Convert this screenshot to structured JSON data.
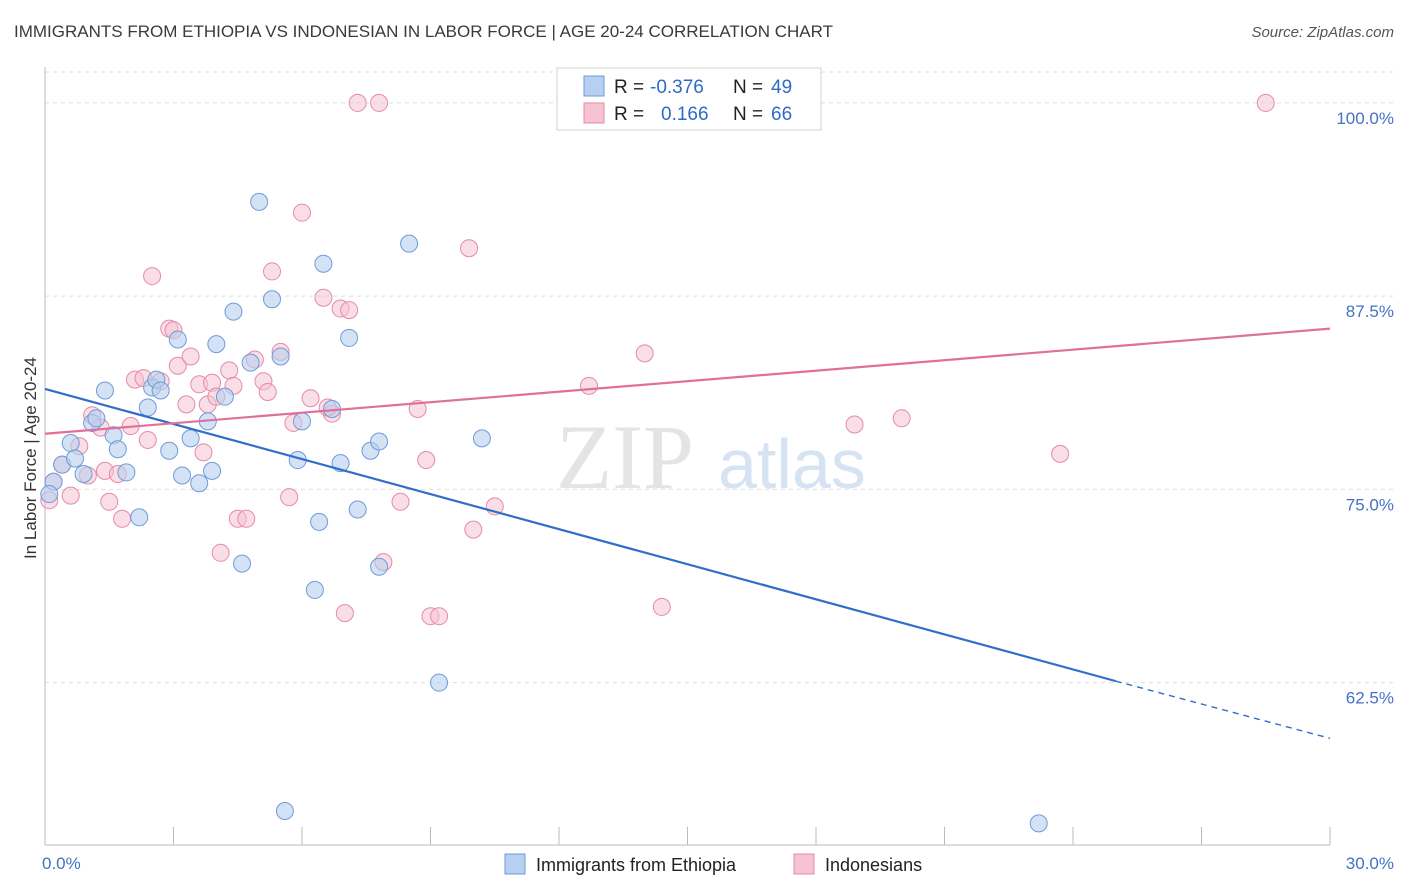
{
  "title": "IMMIGRANTS FROM ETHIOPIA VS INDONESIAN IN LABOR FORCE | AGE 20-24 CORRELATION CHART",
  "source": "Source: ZipAtlas.com",
  "watermark": {
    "zip": "ZIP",
    "atlas": "atlas"
  },
  "colors": {
    "blue_fill": "#b7cff0",
    "blue_stroke": "#6f9bd8",
    "blue_line": "#2f6ecc",
    "pink_fill": "#f6c3d2",
    "pink_stroke": "#e58aa9",
    "pink_line": "#e0709a",
    "axis_label": "#4472c4",
    "grid": "#dddddd"
  },
  "legend_top": [
    {
      "r_label": "R =",
      "r_value": "-0.376",
      "n_label": "N =",
      "n_value": "49",
      "series": "Immigrants from Ethiopia"
    },
    {
      "r_label": "R =",
      "r_value": "0.166",
      "n_label": "N =",
      "n_value": "66",
      "series": "Indonesians"
    }
  ],
  "chart_data": {
    "type": "scatter",
    "title": "IMMIGRANTS FROM ETHIOPIA VS INDONESIAN IN LABOR FORCE | AGE 20-24 CORRELATION CHART",
    "xlabel": "",
    "ylabel": "In Labor Force | Age 20-24",
    "xlim": [
      0,
      30
    ],
    "ylim": [
      52,
      102
    ],
    "x_ticks_labels": [
      "0.0%",
      "30.0%"
    ],
    "y_ticks": [
      62.5,
      75.0,
      87.5,
      100.0
    ],
    "y_tick_labels": [
      "62.5%",
      "75.0%",
      "87.5%",
      "100.0%"
    ],
    "grid": true,
    "legend": "top-center",
    "series": [
      {
        "name": "Immigrants from Ethiopia",
        "r": -0.376,
        "n": 49,
        "trend": {
          "x": [
            0,
            25
          ],
          "y": [
            81.5,
            62.6
          ],
          "dashed_to": [
            30,
            58.9
          ]
        },
        "points": [
          [
            0.2,
            75.5
          ],
          [
            0.4,
            76.6
          ],
          [
            0.6,
            78.0
          ],
          [
            0.7,
            77.0
          ],
          [
            0.9,
            76.0
          ],
          [
            1.1,
            79.3
          ],
          [
            1.2,
            79.6
          ],
          [
            1.4,
            81.4
          ],
          [
            1.6,
            78.5
          ],
          [
            1.7,
            77.6
          ],
          [
            1.9,
            76.1
          ],
          [
            2.2,
            73.2
          ],
          [
            2.4,
            80.3
          ],
          [
            2.5,
            81.6
          ],
          [
            2.6,
            82.1
          ],
          [
            2.7,
            81.4
          ],
          [
            2.9,
            77.5
          ],
          [
            3.1,
            84.7
          ],
          [
            3.2,
            75.9
          ],
          [
            3.4,
            78.3
          ],
          [
            3.6,
            75.4
          ],
          [
            3.8,
            79.4
          ],
          [
            4.0,
            84.4
          ],
          [
            4.2,
            81.0
          ],
          [
            4.4,
            86.5
          ],
          [
            4.6,
            70.2
          ],
          [
            4.8,
            83.2
          ],
          [
            5.0,
            93.6
          ],
          [
            5.3,
            87.3
          ],
          [
            5.5,
            83.6
          ],
          [
            5.6,
            54.2
          ],
          [
            5.9,
            76.9
          ],
          [
            6.0,
            79.4
          ],
          [
            6.3,
            68.5
          ],
          [
            6.4,
            72.9
          ],
          [
            6.5,
            89.6
          ],
          [
            6.7,
            80.2
          ],
          [
            6.9,
            76.7
          ],
          [
            7.1,
            84.8
          ],
          [
            7.3,
            73.7
          ],
          [
            7.6,
            77.5
          ],
          [
            7.8,
            78.1
          ],
          [
            7.8,
            70.0
          ],
          [
            8.5,
            90.9
          ],
          [
            9.2,
            62.5
          ],
          [
            10.2,
            78.3
          ],
          [
            23.2,
            53.4
          ],
          [
            0.1,
            74.7
          ],
          [
            3.9,
            76.2
          ]
        ]
      },
      {
        "name": "Indonesians",
        "r": 0.166,
        "n": 66,
        "trend": {
          "x": [
            0,
            30
          ],
          "y": [
            78.6,
            85.4
          ]
        },
        "points": [
          [
            0.1,
            74.3
          ],
          [
            0.4,
            76.6
          ],
          [
            0.6,
            74.6
          ],
          [
            0.8,
            77.8
          ],
          [
            1.0,
            75.9
          ],
          [
            1.1,
            79.8
          ],
          [
            1.3,
            79.0
          ],
          [
            1.4,
            76.2
          ],
          [
            1.5,
            74.2
          ],
          [
            1.7,
            76.0
          ],
          [
            1.8,
            73.1
          ],
          [
            2.0,
            79.1
          ],
          [
            2.1,
            82.1
          ],
          [
            2.3,
            82.2
          ],
          [
            2.4,
            78.2
          ],
          [
            2.5,
            88.8
          ],
          [
            2.7,
            82.0
          ],
          [
            2.9,
            85.4
          ],
          [
            3.0,
            85.3
          ],
          [
            3.1,
            83.0
          ],
          [
            3.3,
            80.5
          ],
          [
            3.4,
            83.6
          ],
          [
            3.6,
            81.8
          ],
          [
            3.7,
            77.4
          ],
          [
            3.8,
            80.5
          ],
          [
            3.9,
            81.9
          ],
          [
            4.0,
            81.0
          ],
          [
            4.1,
            70.9
          ],
          [
            4.3,
            82.7
          ],
          [
            4.4,
            81.7
          ],
          [
            4.5,
            73.1
          ],
          [
            4.7,
            73.1
          ],
          [
            4.9,
            83.4
          ],
          [
            5.1,
            82.0
          ],
          [
            5.2,
            81.3
          ],
          [
            5.3,
            89.1
          ],
          [
            5.5,
            83.9
          ],
          [
            5.7,
            74.5
          ],
          [
            5.8,
            79.3
          ],
          [
            6.0,
            92.9
          ],
          [
            6.2,
            80.9
          ],
          [
            6.5,
            87.4
          ],
          [
            6.7,
            79.9
          ],
          [
            6.9,
            86.7
          ],
          [
            7.1,
            86.6
          ],
          [
            7.3,
            100.0
          ],
          [
            7.8,
            100.0
          ],
          [
            7.9,
            70.3
          ],
          [
            8.3,
            74.2
          ],
          [
            8.7,
            80.2
          ],
          [
            8.9,
            76.9
          ],
          [
            9.0,
            66.8
          ],
          [
            9.2,
            66.8
          ],
          [
            9.9,
            90.6
          ],
          [
            10.0,
            72.4
          ],
          [
            10.5,
            73.9
          ],
          [
            12.7,
            81.7
          ],
          [
            14.0,
            83.8
          ],
          [
            14.4,
            67.4
          ],
          [
            18.9,
            79.2
          ],
          [
            20.0,
            79.6
          ],
          [
            23.7,
            77.3
          ],
          [
            28.5,
            100.0
          ],
          [
            7.0,
            67.0
          ],
          [
            0.2,
            75.5
          ],
          [
            6.6,
            80.3
          ]
        ]
      }
    ],
    "bottom_legend": [
      "Immigrants from Ethiopia",
      "Indonesians"
    ]
  }
}
